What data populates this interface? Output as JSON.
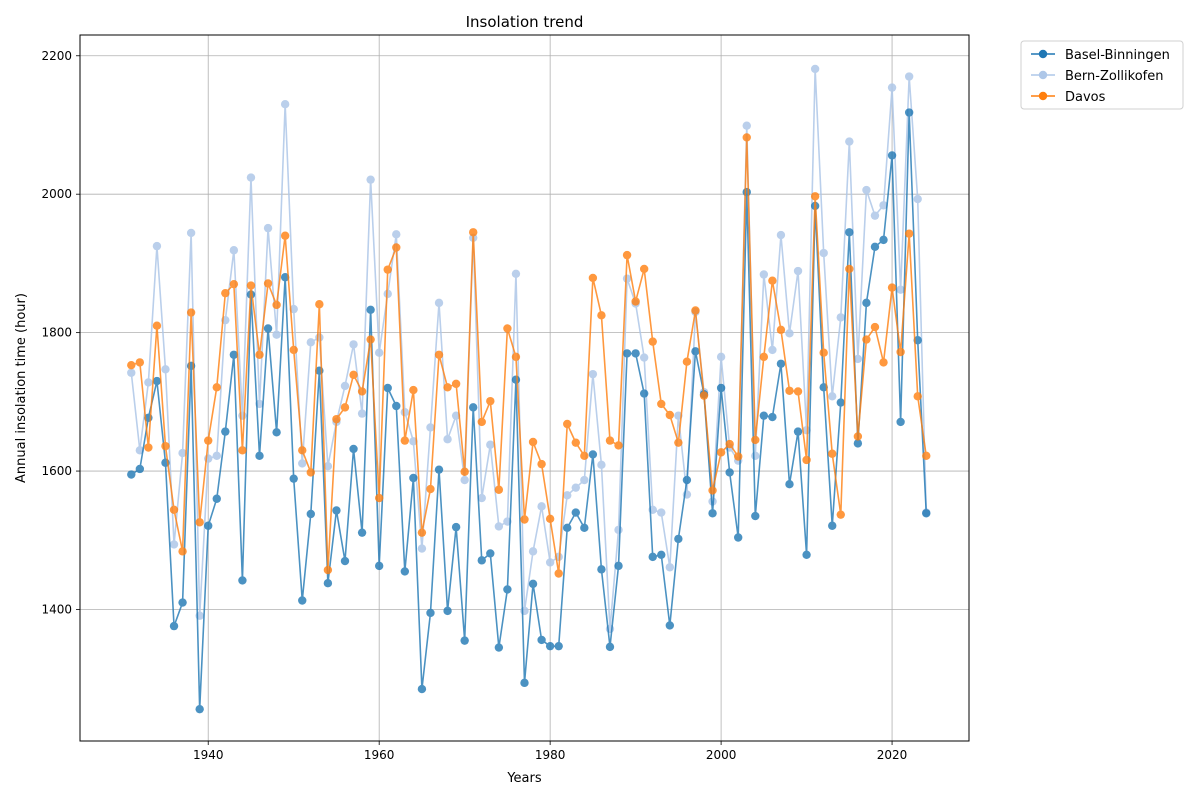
{
  "chart_data": {
    "type": "line",
    "title": "Insolation trend",
    "xlabel": "Years",
    "ylabel": "Annual insolation time (hour)",
    "xlim": [
      1925,
      2029
    ],
    "ylim": [
      1210,
      2230
    ],
    "xticks": [
      1940,
      1960,
      1980,
      2000,
      2020
    ],
    "yticks": [
      1400,
      1600,
      1800,
      2000,
      2200
    ],
    "grid": true,
    "legend_position": "outside-top-right",
    "colors": {
      "Basel-Binningen": "#1f77b4",
      "Bern-Zollikofen": "#aec7e8",
      "Davos": "#ff7f0e"
    },
    "x": [
      1931,
      1932,
      1933,
      1934,
      1935,
      1936,
      1937,
      1938,
      1939,
      1940,
      1941,
      1942,
      1943,
      1944,
      1945,
      1946,
      1947,
      1948,
      1949,
      1950,
      1951,
      1952,
      1953,
      1954,
      1955,
      1956,
      1957,
      1958,
      1959,
      1960,
      1961,
      1962,
      1963,
      1964,
      1965,
      1966,
      1967,
      1968,
      1969,
      1970,
      1971,
      1972,
      1973,
      1974,
      1975,
      1976,
      1977,
      1978,
      1979,
      1980,
      1981,
      1982,
      1983,
      1984,
      1985,
      1986,
      1987,
      1988,
      1989,
      1990,
      1991,
      1992,
      1993,
      1994,
      1995,
      1996,
      1997,
      1998,
      1999,
      2000,
      2001,
      2002,
      2003,
      2004,
      2005,
      2006,
      2007,
      2008,
      2009,
      2010,
      2011,
      2012,
      2013,
      2014,
      2015,
      2016,
      2017,
      2018,
      2019,
      2020,
      2021,
      2022,
      2023,
      2024
    ],
    "series": [
      {
        "name": "Basel-Binningen",
        "values": [
          1595,
          1603,
          1677,
          1730,
          1612,
          1376,
          1410,
          1752,
          1256,
          1521,
          1560,
          1657,
          1768,
          1442,
          1855,
          1622,
          1806,
          1656,
          1880,
          1589,
          1413,
          1538,
          1745,
          1438,
          1543,
          1470,
          1632,
          1511,
          1833,
          1463,
          1720,
          1694,
          1455,
          1590,
          1285,
          1395,
          1602,
          1398,
          1519,
          1355,
          1692,
          1471,
          1481,
          1345,
          1429,
          1732,
          1294,
          1437,
          1356,
          1347,
          1347,
          1518,
          1540,
          1518,
          1624,
          1458,
          1346,
          1463,
          1770,
          1770,
          1712,
          1476,
          1479,
          1377,
          1502,
          1587,
          1773,
          1711,
          1539,
          1720,
          1598,
          1504,
          2003,
          1535,
          1680,
          1678,
          1755,
          1581,
          1657,
          1479,
          1983,
          1721,
          1521,
          1699,
          1945,
          1640,
          1843,
          1924,
          1934,
          2056,
          1671,
          2118,
          1789,
          1539
        ]
      },
      {
        "name": "Bern-Zollikofen",
        "values": [
          1742,
          1630,
          1728,
          1925,
          1747,
          1494,
          1626,
          1944,
          1391,
          1618,
          1622,
          1818,
          1919,
          1680,
          2024,
          1697,
          1951,
          1797,
          2130,
          1834,
          1611,
          1786,
          1793,
          1607,
          1671,
          1723,
          1783,
          1683,
          2021,
          1771,
          1856,
          1942,
          1685,
          1643,
          1488,
          1663,
          1843,
          1646,
          1680,
          1587,
          1937,
          1561,
          1638,
          1520,
          1527,
          1885,
          1398,
          1484,
          1549,
          1468,
          1476,
          1565,
          1576,
          1587,
          1740,
          1609,
          1372,
          1515,
          1878,
          1842,
          1764,
          1544,
          1540,
          1461,
          1680,
          1566,
          1830,
          1714,
          1556,
          1765,
          1634,
          1615,
          2099,
          1622,
          1884,
          1775,
          1941,
          1799,
          1889,
          1659,
          2181,
          1915,
          1708,
          1822,
          2076,
          1762,
          2006,
          1969,
          1984,
          2154,
          1862,
          2170,
          1993,
          1540
        ]
      },
      {
        "name": "Davos",
        "values": [
          1753,
          1757,
          1634,
          1810,
          1636,
          1544,
          1484,
          1829,
          1526,
          1644,
          1721,
          1857,
          1870,
          1630,
          1868,
          1768,
          1871,
          1840,
          1940,
          1775,
          1630,
          1598,
          1841,
          1457,
          1675,
          1692,
          1739,
          1715,
          1790,
          1561,
          1891,
          1923,
          1644,
          1717,
          1511,
          1574,
          1768,
          1721,
          1726,
          1599,
          1945,
          1671,
          1701,
          1573,
          1806,
          1765,
          1530,
          1642,
          1610,
          1531,
          1452,
          1668,
          1641,
          1622,
          1879,
          1825,
          1644,
          1637,
          1912,
          1845,
          1892,
          1787,
          1697,
          1681,
          1641,
          1758,
          1832,
          1709,
          1572,
          1627,
          1639,
          1621,
          2082,
          1645,
          1765,
          1875,
          1804,
          1716,
          1715,
          1616,
          1997,
          1771,
          1625,
          1537,
          1892,
          1650,
          1790,
          1808,
          1757,
          1865,
          1772,
          1943,
          1708,
          1622
        ]
      }
    ]
  }
}
